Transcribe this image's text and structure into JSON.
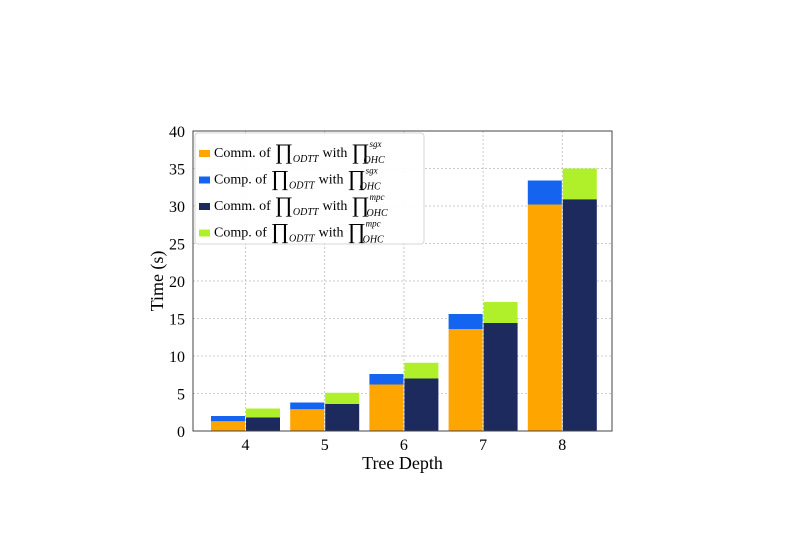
{
  "chart_data": {
    "type": "bar",
    "stacked": true,
    "title": "",
    "xlabel": "Tree Depth",
    "ylabel": "Time (s)",
    "ylim": [
      0,
      40
    ],
    "yticks": [
      0,
      5,
      10,
      15,
      20,
      25,
      30,
      35,
      40
    ],
    "grid": true,
    "legend_position": "top-left",
    "categories": [
      "4",
      "5",
      "6",
      "7",
      "8"
    ],
    "stacks": [
      {
        "position": "left",
        "series": [
          {
            "name": "Comm. of ∏ODTT with ∏OHC sgx",
            "color": "#FFA500",
            "values": [
              1.3,
              2.9,
              6.2,
              13.6,
              30.2
            ]
          },
          {
            "name": "Comp. of ∏ODTT with ∏OHC sgx",
            "color": "#1464F0",
            "values": [
              0.7,
              0.9,
              1.4,
              2.0,
              3.2
            ]
          }
        ]
      },
      {
        "position": "right",
        "series": [
          {
            "name": "Comm. of ∏ODTT with ∏OHC mpc",
            "color": "#1C2A5E",
            "values": [
              1.8,
              3.6,
              7.0,
              14.4,
              30.9
            ]
          },
          {
            "name": "Comp. of ∏ODTT with ∏OHC mpc",
            "color": "#B0F02A",
            "values": [
              1.2,
              1.5,
              2.1,
              2.8,
              4.1
            ]
          }
        ]
      }
    ],
    "legend": [
      {
        "prefix": "Comm. of",
        "subscript": "ODTT",
        "mid": "with",
        "sub2": "OHC",
        "sup2": "sgx",
        "color": "#FFA500"
      },
      {
        "prefix": "Comp. of",
        "subscript": "ODTT",
        "mid": "with",
        "sub2": "OHC",
        "sup2": "sgx",
        "color": "#1464F0"
      },
      {
        "prefix": "Comm. of",
        "subscript": "ODTT",
        "mid": "with",
        "sub2": "OHC",
        "sup2": "mpc",
        "color": "#1C2A5E"
      },
      {
        "prefix": "Comp. of",
        "subscript": "ODTT",
        "mid": "with",
        "sub2": "OHC",
        "sup2": "mpc",
        "color": "#B0F02A"
      }
    ]
  }
}
